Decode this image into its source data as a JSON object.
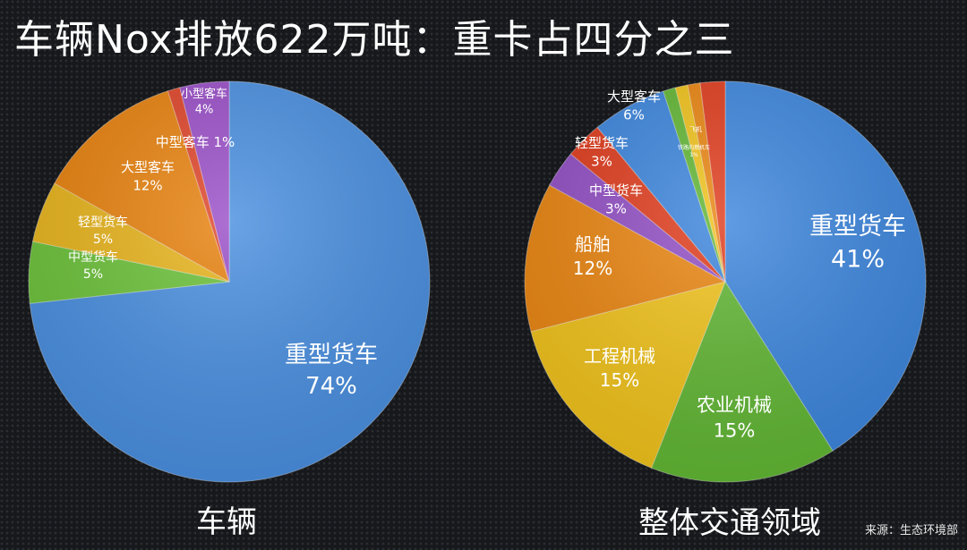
{
  "title": "车辆Nox排放622万吨：重卡占四分之三",
  "source": "来源：生态环境部",
  "chart_data": [
    {
      "type": "pie",
      "title": "车辆",
      "slices": [
        {
          "label": "重型货车",
          "value": 74,
          "display": "74%",
          "color": "#4a8fe0"
        },
        {
          "label": "中型货车",
          "value": 5,
          "display": "5%",
          "color": "#6cc23a"
        },
        {
          "label": "轻型货车",
          "value": 5,
          "display": "5%",
          "color": "#e8b41c"
        },
        {
          "label": "大型客车",
          "value": 12,
          "display": "12%",
          "color": "#e8820e"
        },
        {
          "label": "中型客车",
          "value": 1,
          "display": "1%",
          "color": "#e0452a"
        },
        {
          "label": "小型客车",
          "value": 4,
          "display": "4%",
          "color": "#9a4fc8"
        }
      ]
    },
    {
      "type": "pie",
      "title": "整体交通领域",
      "slices": [
        {
          "label": "重型货车",
          "value": 41,
          "display": "41%",
          "color": "#3d86dd"
        },
        {
          "label": "农业机械",
          "value": 15,
          "display": "15%",
          "color": "#62b735"
        },
        {
          "label": "工程机械",
          "value": 15,
          "display": "15%",
          "color": "#f1c31c"
        },
        {
          "label": "船舶",
          "value": 12,
          "display": "12%",
          "color": "#ea8612"
        },
        {
          "label": "中型货车",
          "value": 3,
          "display": "3%",
          "color": "#9350c5"
        },
        {
          "label": "轻型货车",
          "value": 3,
          "display": "3%",
          "color": "#e03d1e"
        },
        {
          "label": "大型客车",
          "value": 6,
          "display": "6%",
          "color": "#3d86dd"
        },
        {
          "label": "",
          "value": 1,
          "display": "",
          "color": "#62b735"
        },
        {
          "label": "飞机",
          "value": 1,
          "display": "",
          "color": "#f1c31c"
        },
        {
          "label": "铁路内燃机车",
          "value": 1,
          "display": "1%",
          "color": "#ea8612"
        },
        {
          "label": "",
          "value": 2,
          "display": "",
          "color": "#e03d1e"
        }
      ]
    }
  ]
}
